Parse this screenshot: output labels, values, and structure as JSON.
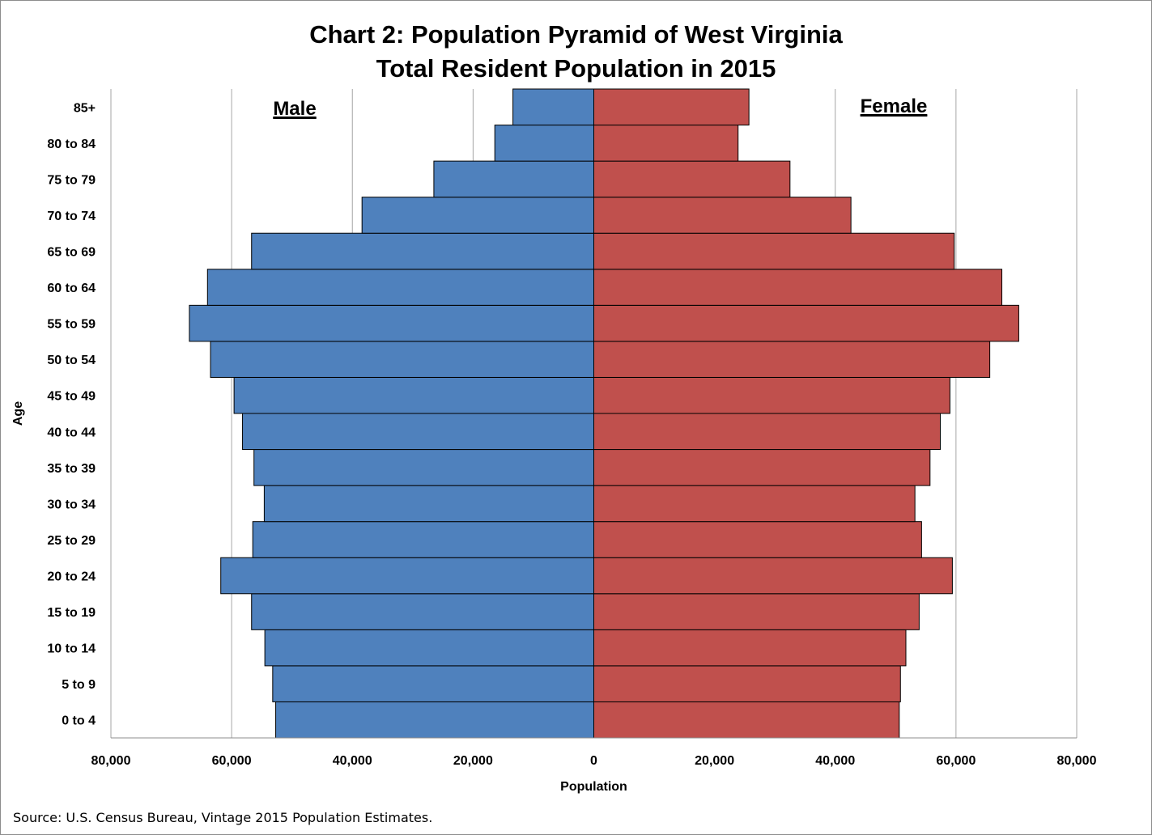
{
  "title_line1": "Chart 2: Population Pyramid of West Virginia",
  "title_line2": "Total Resident Population in 2015",
  "source": "Source: U.S. Census Bureau, Vintage 2015 Population Estimates.",
  "colors": {
    "male": "#4f81bd",
    "female": "#c0504d",
    "grid": "#a6a6a6"
  },
  "chart_data": {
    "type": "bar",
    "orientation": "horizontal-pyramid",
    "title": "Chart 2: Population Pyramid of West Virginia Total Resident Population in 2015",
    "xlabel": "Population",
    "ylabel": "Age",
    "xlim": [
      -80000,
      80000
    ],
    "x_ticks": [
      -80000,
      -60000,
      -40000,
      -20000,
      0,
      20000,
      40000,
      60000,
      80000
    ],
    "x_tick_labels": [
      "80,000",
      "60,000",
      "40,000",
      "20,000",
      "0",
      "20,000",
      "40,000",
      "60,000",
      "80,000"
    ],
    "grid": true,
    "categories": [
      "0 to 4",
      "5 to 9",
      "10 to 14",
      "15 to 19",
      "20 to 24",
      "25 to 29",
      "30 to 34",
      "35 to 39",
      "40 to 44",
      "45 to 49",
      "50 to 54",
      "55 to 59",
      "60 to 64",
      "65 to 69",
      "70 to 74",
      "75 to 79",
      "80 to 84",
      "85+"
    ],
    "series": [
      {
        "name": "Male",
        "values": [
          52700,
          53200,
          54500,
          56700,
          61800,
          56500,
          54600,
          56300,
          58200,
          59600,
          63500,
          67000,
          64000,
          56700,
          38400,
          26500,
          16400,
          13400
        ]
      },
      {
        "name": "Female",
        "values": [
          50600,
          50800,
          51700,
          53900,
          59400,
          54300,
          53200,
          55700,
          57400,
          59000,
          65600,
          70400,
          67600,
          59700,
          42600,
          32500,
          23900,
          25700
        ]
      }
    ]
  }
}
